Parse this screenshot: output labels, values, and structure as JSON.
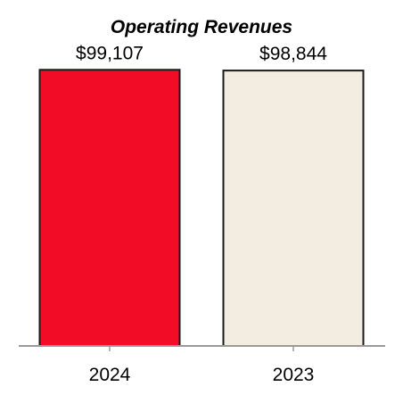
{
  "chart_data": {
    "type": "bar",
    "title": "Operating Revenues",
    "categories": [
      "2024",
      "2023"
    ],
    "values": [
      99107,
      98844
    ],
    "data_labels": [
      "$99,107",
      "$98,844"
    ],
    "colors": [
      "#f20c25",
      "#f2ece1"
    ],
    "bar_border_color": "#1a1a1a",
    "axis_color": "#9a9a9a",
    "xlabel": "",
    "ylabel": "",
    "ylim": [
      0,
      104000
    ],
    "grid": false,
    "legend": "none"
  }
}
